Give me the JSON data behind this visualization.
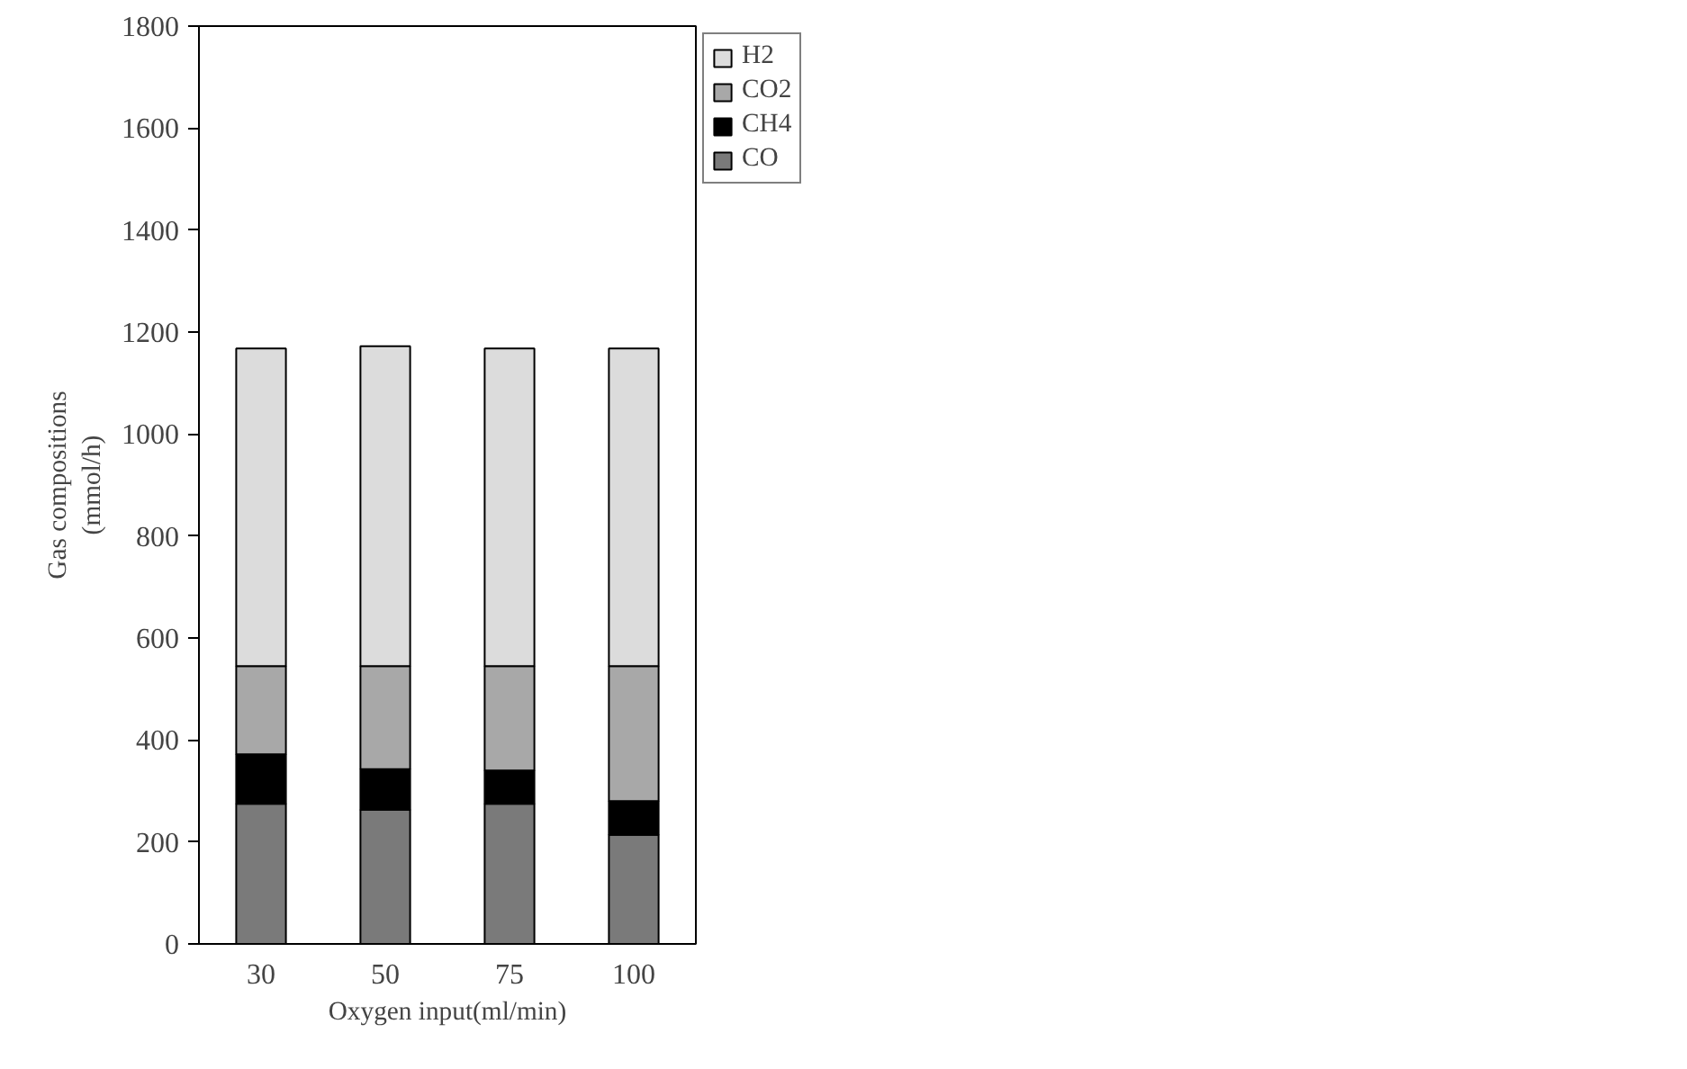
{
  "chart_data": {
    "type": "bar",
    "stacked": true,
    "xlabel": "Oxygen input(ml/min)",
    "ylabel": "Gas compositions\n(mmol/h)",
    "categories": [
      "30",
      "50",
      "75",
      "100"
    ],
    "series": [
      {
        "name": "CO",
        "color": "#7a7a7a",
        "values": [
          275,
          263,
          275,
          214
        ]
      },
      {
        "name": "CH4",
        "color": "#000000",
        "values": [
          97,
          80,
          65,
          66
        ]
      },
      {
        "name": "CO2",
        "color": "#a8a8a8",
        "values": [
          173,
          202,
          205,
          265
        ]
      },
      {
        "name": "H2",
        "color": "#dcdcdc",
        "values": [
          623,
          627,
          623,
          623
        ]
      }
    ],
    "ylim": [
      0,
      1800
    ],
    "yticks": [
      0,
      200,
      400,
      600,
      800,
      1000,
      1200,
      1400,
      1600,
      1800
    ],
    "grid": false,
    "legend": "top right"
  }
}
